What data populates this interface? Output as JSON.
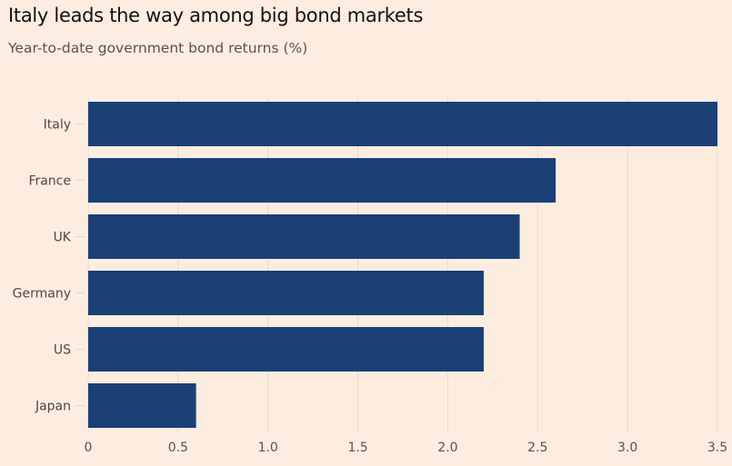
{
  "chart_data": {
    "type": "bar",
    "orientation": "horizontal",
    "title": "Italy leads the way among big bond markets",
    "subtitle": "Year-to-date government bond returns (%)",
    "xlabel": "",
    "ylabel": "",
    "categories": [
      "Italy",
      "France",
      "UK",
      "Germany",
      "US",
      "Japan"
    ],
    "values": [
      3.5,
      2.6,
      2.4,
      2.2,
      2.2,
      0.6
    ],
    "xlim": [
      0,
      3.5
    ],
    "xticks": [
      0,
      0.5,
      1.0,
      1.5,
      2.0,
      2.5,
      3.0,
      3.5
    ],
    "xtick_labels": [
      "0",
      "0.5",
      "1.0",
      "1.5",
      "2.0",
      "2.5",
      "3.0",
      "3.5"
    ],
    "grid": "vertical",
    "legend": "none",
    "colors": {
      "bar": "#1b4075",
      "background": "#fdede1",
      "grid": "#e6d9ce"
    }
  }
}
